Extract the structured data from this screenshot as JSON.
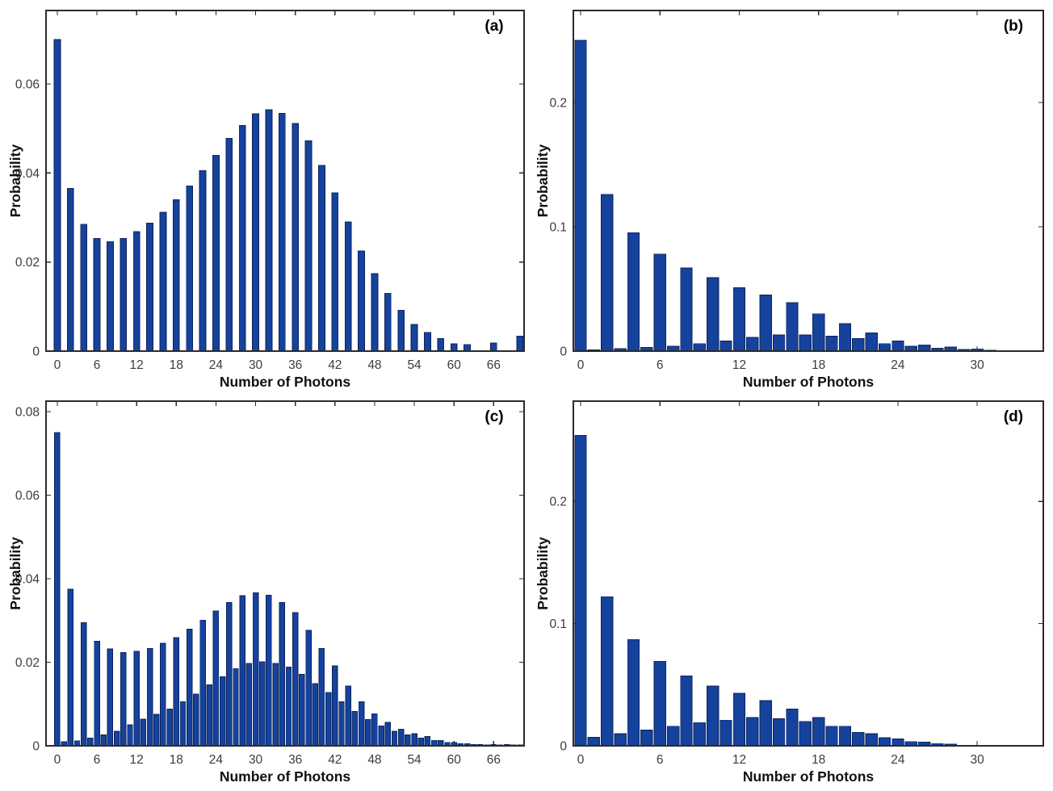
{
  "figure": {
    "background": "#ffffff",
    "bar_fill": "#15429D",
    "bar_edge": "#0C2256",
    "axis_color": "#2B2B2B",
    "tick_label_color": "#3C3C3C",
    "axis_label_color": "#111111",
    "panel_label_color": "#000000"
  },
  "chart_data": [
    {
      "panel": "(a)",
      "type": "bar",
      "xlabel": "Number of Photons",
      "ylabel": "Probability",
      "legend": "none",
      "grid": "off",
      "xlim": [
        -1.7,
        70.6
      ],
      "ylim": [
        0,
        0.0765
      ],
      "xticks": [
        0,
        6,
        12,
        18,
        24,
        30,
        36,
        42,
        48,
        54,
        60,
        66
      ],
      "yticks": [
        0,
        0.02,
        0.04,
        0.06
      ],
      "ytick_labels": [
        "0",
        "0.02",
        "0.04",
        "0.06"
      ],
      "x": [
        0,
        2,
        4,
        6,
        8,
        10,
        12,
        14,
        16,
        18,
        20,
        22,
        24,
        26,
        28,
        30,
        32,
        34,
        36,
        38,
        40,
        42,
        44,
        46,
        48,
        50,
        52,
        54,
        56,
        58,
        60,
        62,
        64,
        66,
        68,
        70
      ],
      "values": [
        0.07,
        0.0365,
        0.0285,
        0.0253,
        0.0246,
        0.0253,
        0.0268,
        0.0287,
        0.0312,
        0.034,
        0.0371,
        0.0405,
        0.044,
        0.0478,
        0.0507,
        0.0533,
        0.0542,
        0.0534,
        0.0511,
        0.0472,
        0.0417,
        0.0355,
        0.029,
        0.0225,
        0.0174,
        0.013,
        0.0092,
        0.006,
        0.0042,
        0.0028,
        0.0016,
        0.0015,
        0,
        0.0018,
        0,
        0.0034
      ]
    },
    {
      "panel": "(b)",
      "type": "bar",
      "xlabel": "Number of Photons",
      "ylabel": "Probability",
      "legend": "none",
      "grid": "off",
      "xlim": [
        -0.55,
        35.0
      ],
      "ylim": [
        0,
        0.274
      ],
      "xticks": [
        0,
        6,
        12,
        18,
        24,
        30
      ],
      "yticks": [
        0,
        0.1,
        0.2
      ],
      "ytick_labels": [
        "0",
        "0.1",
        "0.2"
      ],
      "x": [
        0,
        1,
        2,
        3,
        4,
        5,
        6,
        7,
        8,
        9,
        10,
        11,
        12,
        13,
        14,
        15,
        16,
        17,
        18,
        19,
        20,
        21,
        22,
        23,
        24,
        25,
        26,
        27,
        28,
        29,
        30,
        31,
        32,
        33,
        34
      ],
      "values": [
        0.25,
        0.001,
        0.126,
        0.002,
        0.095,
        0.003,
        0.078,
        0.004,
        0.067,
        0.006,
        0.059,
        0.008,
        0.051,
        0.011,
        0.045,
        0.013,
        0.039,
        0.013,
        0.03,
        0.012,
        0.022,
        0.01,
        0.0145,
        0.006,
        0.008,
        0.004,
        0.005,
        0.0022,
        0.0032,
        0.0012,
        0.0018,
        0.0008,
        0.0005,
        0.0004,
        0.0003
      ]
    },
    {
      "panel": "(c)",
      "type": "bar",
      "xlabel": "Number of Photons",
      "ylabel": "Probability",
      "legend": "none",
      "grid": "off",
      "xlim": [
        -1.7,
        70.6
      ],
      "ylim": [
        0,
        0.0825
      ],
      "xticks": [
        0,
        6,
        12,
        18,
        24,
        30,
        36,
        42,
        48,
        54,
        60,
        66
      ],
      "yticks": [
        0,
        0.02,
        0.04,
        0.06,
        0.08
      ],
      "ytick_labels": [
        "0",
        "0.02",
        "0.04",
        "0.06",
        "0.08"
      ],
      "x": [
        0,
        1,
        2,
        3,
        4,
        5,
        6,
        7,
        8,
        9,
        10,
        11,
        12,
        13,
        14,
        15,
        16,
        17,
        18,
        19,
        20,
        21,
        22,
        23,
        24,
        25,
        26,
        27,
        28,
        29,
        30,
        31,
        32,
        33,
        34,
        35,
        36,
        37,
        38,
        39,
        40,
        41,
        42,
        43,
        44,
        45,
        46,
        47,
        48,
        49,
        50,
        51,
        52,
        53,
        54,
        55,
        56,
        57,
        58,
        59,
        60,
        61,
        62,
        63,
        64,
        65,
        66,
        67,
        68,
        69,
        70
      ],
      "values": [
        0.075,
        0.001,
        0.0375,
        0.0012,
        0.0295,
        0.0018,
        0.025,
        0.0026,
        0.0232,
        0.0035,
        0.0223,
        0.005,
        0.0226,
        0.0064,
        0.0233,
        0.0075,
        0.0245,
        0.0088,
        0.0259,
        0.0105,
        0.0279,
        0.0124,
        0.0301,
        0.0146,
        0.0323,
        0.0165,
        0.0343,
        0.0185,
        0.0359,
        0.0197,
        0.0366,
        0.0201,
        0.036,
        0.0197,
        0.0343,
        0.0188,
        0.0319,
        0.0171,
        0.0276,
        0.0149,
        0.0233,
        0.0128,
        0.0191,
        0.0105,
        0.0143,
        0.0082,
        0.0105,
        0.0063,
        0.0076,
        0.0047,
        0.0056,
        0.0035,
        0.004,
        0.0026,
        0.0029,
        0.0018,
        0.0022,
        0.0013,
        0.0013,
        0.0008,
        0.0008,
        0.0005,
        0.0005,
        0.0003,
        0.0003,
        0.0002,
        0.0003,
        0.0002,
        0.0003,
        0.0002,
        0.0002
      ]
    },
    {
      "panel": "(d)",
      "type": "bar",
      "xlabel": "Number of Photons",
      "ylabel": "Probability",
      "legend": "none",
      "grid": "off",
      "xlim": [
        -0.55,
        35.0
      ],
      "ylim": [
        0,
        0.282
      ],
      "xticks": [
        0,
        6,
        12,
        18,
        24,
        30
      ],
      "yticks": [
        0,
        0.1,
        0.2
      ],
      "ytick_labels": [
        "0",
        "0.1",
        "0.2"
      ],
      "x": [
        0,
        1,
        2,
        3,
        4,
        5,
        6,
        7,
        8,
        9,
        10,
        11,
        12,
        13,
        14,
        15,
        16,
        17,
        18,
        19,
        20,
        21,
        22,
        23,
        24,
        25,
        26,
        27,
        28,
        29,
        30,
        31,
        32,
        33,
        34
      ],
      "values": [
        0.254,
        0.007,
        0.122,
        0.01,
        0.087,
        0.013,
        0.069,
        0.016,
        0.057,
        0.019,
        0.049,
        0.021,
        0.043,
        0.023,
        0.037,
        0.022,
        0.03,
        0.02,
        0.023,
        0.016,
        0.016,
        0.011,
        0.01,
        0.0065,
        0.0055,
        0.0035,
        0.003,
        0.0018,
        0.0012,
        0.0005,
        0.0003,
        0.0002,
        0.0002,
        0.0001,
        0.0001
      ]
    }
  ]
}
